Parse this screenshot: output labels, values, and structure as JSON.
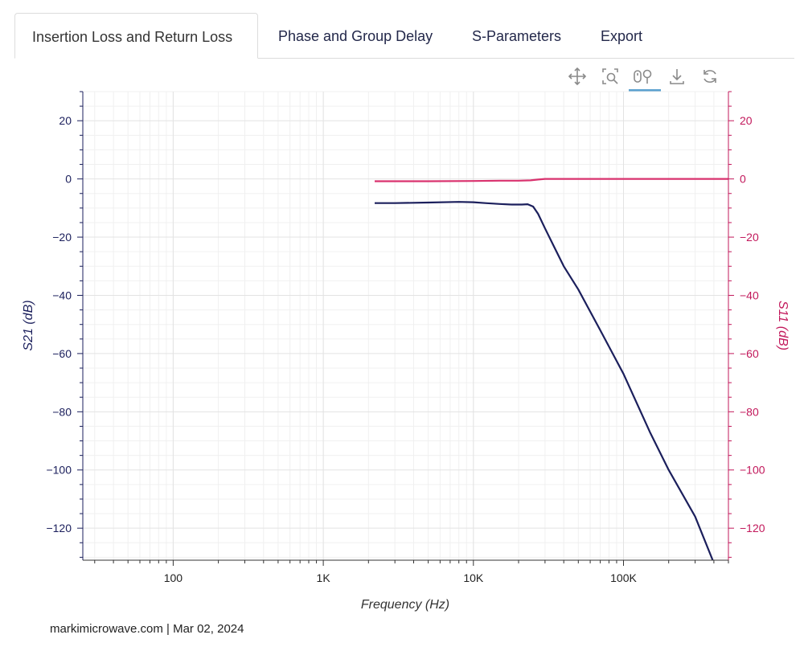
{
  "tabs": [
    {
      "label": "Insertion Loss and Return Loss",
      "active": true
    },
    {
      "label": "Phase and Group Delay",
      "active": false
    },
    {
      "label": "S-Parameters",
      "active": false
    },
    {
      "label": "Export",
      "active": false
    }
  ],
  "toolbar": {
    "icons": [
      "pan-icon",
      "box-zoom-icon",
      "wheel-zoom-icon",
      "save-icon",
      "reset-icon"
    ],
    "active_tool": "wheel-zoom-icon"
  },
  "colors": {
    "s21": "#1b1f5c",
    "s11": "#d9326e",
    "left_axis": "#1b1f5c",
    "right_axis": "#c2185b",
    "grid": "#e3e3e3",
    "axis": "#333333",
    "active_tool": "#5aa0cf"
  },
  "chart_data": {
    "type": "line",
    "xscale": "log",
    "xlabel": "Frequency (Hz)",
    "ylabel_left": "S21 (dB)",
    "ylabel_right": "S11 (dB)",
    "xlim": [
      25,
      500000
    ],
    "ylim": [
      -131,
      30
    ],
    "xticks": [
      100,
      1000,
      10000,
      100000
    ],
    "xtick_labels": [
      "100",
      "1K",
      "10K",
      "100K"
    ],
    "yticks": [
      20,
      0,
      -20,
      -40,
      -60,
      -80,
      -100,
      -120
    ],
    "ytick_labels": [
      "20",
      "0",
      "−20",
      "−40",
      "−60",
      "−80",
      "−100",
      "−120"
    ],
    "grid": true,
    "series": [
      {
        "name": "S21 (dB)",
        "axis": "left",
        "x": [
          2200,
          3000,
          5000,
          8000,
          10000,
          12000,
          15000,
          18000,
          21000,
          23000,
          25000,
          27000,
          30000,
          35000,
          40000,
          50000,
          70000,
          100000,
          150000,
          200000,
          300000,
          400000
        ],
        "y": [
          -8.3,
          -8.3,
          -8.1,
          -7.9,
          -8.0,
          -8.3,
          -8.6,
          -8.8,
          -8.8,
          -8.7,
          -9.5,
          -12,
          -17,
          -24,
          -30,
          -38,
          -52,
          -67,
          -87,
          -100,
          -116,
          -132
        ]
      },
      {
        "name": "S11 (dB)",
        "axis": "right",
        "x": [
          2200,
          5000,
          10000,
          15000,
          20000,
          24000,
          27000,
          30000,
          40000,
          100000,
          500000
        ],
        "y": [
          -0.8,
          -0.8,
          -0.7,
          -0.6,
          -0.6,
          -0.5,
          -0.2,
          0,
          0,
          0,
          0
        ]
      }
    ]
  },
  "footer": "markimicrowave.com | Mar 02, 2024"
}
